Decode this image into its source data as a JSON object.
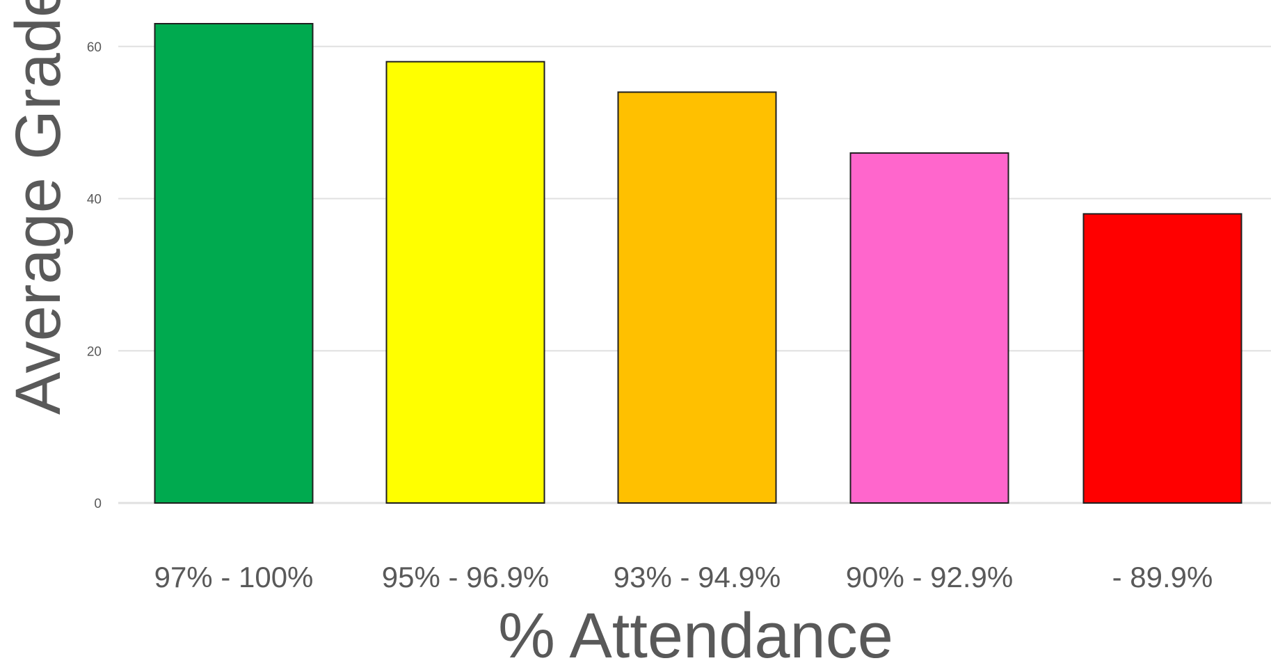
{
  "chart_data": {
    "type": "bar",
    "title": "",
    "xlabel": "% Attendance",
    "ylabel": "Average Grade",
    "ylim": [
      0,
      63
    ],
    "yticks": [
      0,
      20,
      40,
      60
    ],
    "grid": true,
    "legend": "none",
    "categories": [
      "97% - 100%",
      "95% - 96.9%",
      "93% - 94.9%",
      "90% - 92.9%",
      "- 89.9%"
    ],
    "values": [
      63,
      58,
      54,
      46,
      38
    ],
    "colors": [
      "#00AA4F",
      "#FFFF00",
      "#FFC000",
      "#FF66CC",
      "#FF0000"
    ],
    "gridline_color": "#E0E0E0",
    "bar_outline_color": "#1F1F1F",
    "text_color": "#595959"
  }
}
